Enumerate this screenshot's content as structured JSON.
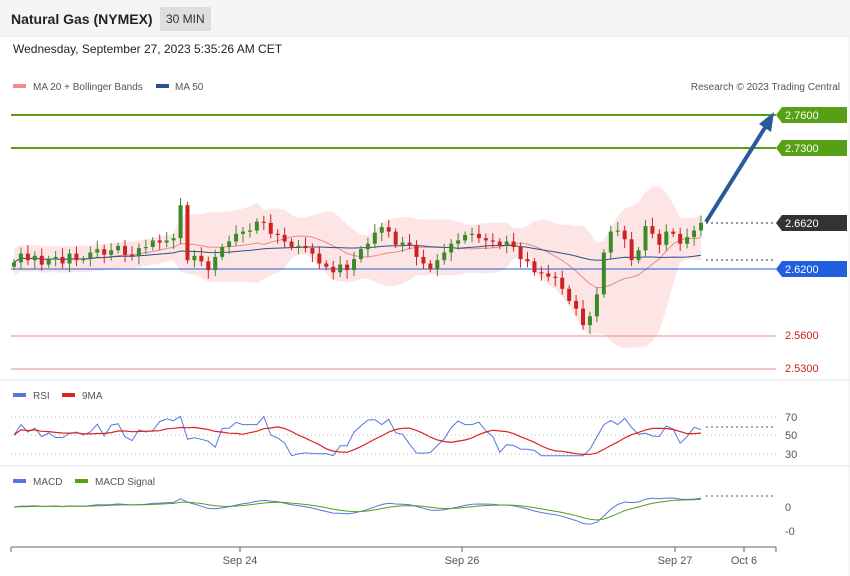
{
  "header": {
    "title": "Natural Gas (NYMEX)",
    "timeframe": "30 MIN",
    "datetime": "Wednesday, September 27, 2023 5:35:26 AM CET"
  },
  "legend": {
    "ma20": "MA 20 + Bollinger Bands",
    "ma50": "MA 50",
    "credit": "Research © 2023 Trading Central"
  },
  "colors": {
    "up": "#3a8a2a",
    "down": "#cc2222",
    "band": "#fde0e0",
    "ma20": "#e58a8a",
    "ma50": "#2a4f8f",
    "green_level": "#55a014",
    "blue_level": "#2060e0",
    "red_level": "#e88a8a",
    "rsi": "#5577dd",
    "rsi_ma": "#dd2222",
    "macd": "#5577dd",
    "macd_signal": "#55a014",
    "arrow": "#2a5a9a"
  },
  "chart_data": [
    {
      "type": "candlestick",
      "title": "Natural Gas (NYMEX)",
      "timeframe": "30 MIN",
      "ylim": [
        2.52,
        2.78
      ],
      "levels": [
        {
          "value": "2.7600",
          "kind": "resistance"
        },
        {
          "value": "2.7300",
          "kind": "resistance"
        },
        {
          "value": "2.6620",
          "kind": "last"
        },
        {
          "value": "2.6200",
          "kind": "pivot"
        },
        {
          "value": "2.5600",
          "kind": "support"
        },
        {
          "value": "2.5300",
          "kind": "support"
        }
      ],
      "series": [
        {
          "name": "MA 20 + Bollinger Bands"
        },
        {
          "name": "MA 50"
        }
      ],
      "close_path": [
        2.626,
        2.634,
        2.628,
        2.632,
        2.624,
        2.629,
        2.631,
        2.625,
        2.634,
        2.628,
        2.629,
        2.635,
        2.638,
        2.633,
        2.637,
        2.641,
        2.633,
        2.632,
        2.639,
        2.64,
        2.646,
        2.644,
        2.646,
        2.648,
        2.678,
        2.628,
        2.632,
        2.627,
        2.619,
        2.631,
        2.64,
        2.645,
        2.652,
        2.654,
        2.655,
        2.663,
        2.662,
        2.652,
        2.651,
        2.645,
        2.64,
        2.641,
        2.639,
        2.634,
        2.625,
        2.622,
        2.617,
        2.624,
        2.619,
        2.629,
        2.638,
        2.643,
        2.653,
        2.658,
        2.654,
        2.642,
        2.644,
        2.642,
        2.631,
        2.625,
        2.62,
        2.628,
        2.635,
        2.643,
        2.646,
        2.651,
        2.652,
        2.648,
        2.646,
        2.645,
        2.641,
        2.645,
        2.64,
        2.629,
        2.627,
        2.617,
        2.616,
        2.613,
        2.612,
        2.602,
        2.591,
        2.584,
        2.569,
        2.577,
        2.597,
        2.635,
        2.654,
        2.655,
        2.647,
        2.628,
        2.637,
        2.659,
        2.652,
        2.642,
        2.654,
        2.652,
        2.643,
        2.649,
        2.655,
        2.662
      ],
      "x_ticks": [
        "Sep 24",
        "Sep 26",
        "Sep 27",
        "Oct 6"
      ]
    },
    {
      "type": "line",
      "panel": "RSI",
      "series": [
        {
          "name": "RSI"
        },
        {
          "name": "9MA"
        }
      ],
      "y_ticks": [
        "70",
        "50",
        "30"
      ]
    },
    {
      "type": "line",
      "panel": "MACD",
      "series": [
        {
          "name": "MACD"
        },
        {
          "name": "MACD Signal"
        }
      ],
      "y_ticks": [
        "0",
        "-0"
      ]
    }
  ],
  "rsi_legend": {
    "rsi": "RSI",
    "ma": "9MA"
  },
  "macd_legend": {
    "macd": "MACD",
    "signal": "MACD Signal"
  }
}
